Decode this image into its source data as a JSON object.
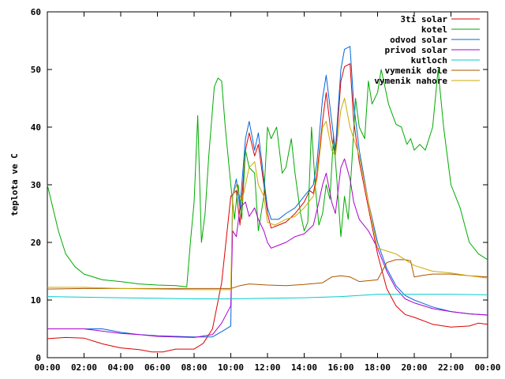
{
  "chart_data": {
    "type": "line",
    "title": "",
    "xlabel": "",
    "ylabel": "teplota ve C",
    "xlim": [
      0,
      24
    ],
    "ylim": [
      0,
      60
    ],
    "xticks": [
      {
        "v": 0,
        "label": "00:00"
      },
      {
        "v": 2,
        "label": "02:00"
      },
      {
        "v": 4,
        "label": "04:00"
      },
      {
        "v": 6,
        "label": "06:00"
      },
      {
        "v": 8,
        "label": "08:00"
      },
      {
        "v": 10,
        "label": "10:00"
      },
      {
        "v": 12,
        "label": "12:00"
      },
      {
        "v": 14,
        "label": "14:00"
      },
      {
        "v": 16,
        "label": "16:00"
      },
      {
        "v": 18,
        "label": "18:00"
      },
      {
        "v": 20,
        "label": "20:00"
      },
      {
        "v": 22,
        "label": "22:00"
      },
      {
        "v": 24,
        "label": "00:00"
      }
    ],
    "yticks": [
      0,
      10,
      20,
      30,
      40,
      50,
      60
    ],
    "grid": false,
    "legend_position": "top-right",
    "series": [
      {
        "name": "3ti solar",
        "color": "#dd0000",
        "points": [
          [
            0,
            3.3
          ],
          [
            1,
            3.5
          ],
          [
            2,
            3.4
          ],
          [
            3,
            2.4
          ],
          [
            4,
            1.7
          ],
          [
            5,
            1.4
          ],
          [
            5.7,
            1.0
          ],
          [
            6.3,
            1.0
          ],
          [
            7,
            1.5
          ],
          [
            8,
            1.5
          ],
          [
            8.5,
            2.5
          ],
          [
            9,
            5
          ],
          [
            9.5,
            13
          ],
          [
            10,
            28
          ],
          [
            10.3,
            29
          ],
          [
            10.5,
            23
          ],
          [
            10.8,
            36
          ],
          [
            11,
            39
          ],
          [
            11.3,
            35
          ],
          [
            11.5,
            37
          ],
          [
            11.8,
            30
          ],
          [
            12,
            25
          ],
          [
            12.2,
            22.5
          ],
          [
            12.6,
            23
          ],
          [
            13,
            23.5
          ],
          [
            13.5,
            25
          ],
          [
            14,
            27
          ],
          [
            14.3,
            29
          ],
          [
            14.5,
            28.5
          ],
          [
            14.7,
            32
          ],
          [
            15,
            41
          ],
          [
            15.2,
            46
          ],
          [
            15.5,
            38
          ],
          [
            15.7,
            35
          ],
          [
            16,
            48
          ],
          [
            16.2,
            50.5
          ],
          [
            16.5,
            51
          ],
          [
            16.7,
            41
          ],
          [
            17,
            34
          ],
          [
            17.5,
            26
          ],
          [
            18,
            18
          ],
          [
            18.5,
            12
          ],
          [
            19,
            9
          ],
          [
            19.5,
            7.5
          ],
          [
            20,
            7
          ],
          [
            21,
            5.8
          ],
          [
            22,
            5.3
          ],
          [
            23,
            5.5
          ],
          [
            23.5,
            6.0
          ],
          [
            24,
            5.8
          ]
        ]
      },
      {
        "name": "kotel",
        "color": "#00aa00",
        "points": [
          [
            0,
            30
          ],
          [
            0.3,
            26
          ],
          [
            0.6,
            22
          ],
          [
            1,
            18
          ],
          [
            1.5,
            15.8
          ],
          [
            2,
            14.5
          ],
          [
            3,
            13.5
          ],
          [
            4,
            13.2
          ],
          [
            5,
            12.8
          ],
          [
            6,
            12.6
          ],
          [
            7,
            12.5
          ],
          [
            7.6,
            12.3
          ],
          [
            7.8,
            20
          ],
          [
            8.0,
            27
          ],
          [
            8.2,
            42
          ],
          [
            8.4,
            20
          ],
          [
            8.6,
            25
          ],
          [
            8.8,
            35
          ],
          [
            9.1,
            47
          ],
          [
            9.3,
            48.5
          ],
          [
            9.5,
            48
          ],
          [
            9.7,
            40
          ],
          [
            10,
            30
          ],
          [
            10.2,
            24
          ],
          [
            10.4,
            30
          ],
          [
            10.6,
            24
          ],
          [
            10.8,
            36
          ],
          [
            11,
            33
          ],
          [
            11.3,
            32
          ],
          [
            11.5,
            22
          ],
          [
            11.8,
            28
          ],
          [
            12,
            40
          ],
          [
            12.2,
            38
          ],
          [
            12.5,
            40
          ],
          [
            12.8,
            32
          ],
          [
            13,
            33
          ],
          [
            13.3,
            38
          ],
          [
            13.5,
            32
          ],
          [
            13.8,
            25
          ],
          [
            14,
            22
          ],
          [
            14.2,
            23.5
          ],
          [
            14.4,
            40
          ],
          [
            14.6,
            30
          ],
          [
            14.8,
            23
          ],
          [
            15,
            25
          ],
          [
            15.2,
            30
          ],
          [
            15.4,
            27.5
          ],
          [
            15.6,
            38.5
          ],
          [
            15.8,
            30
          ],
          [
            16,
            21
          ],
          [
            16.2,
            28
          ],
          [
            16.4,
            24
          ],
          [
            16.6,
            34
          ],
          [
            16.8,
            45
          ],
          [
            17,
            40
          ],
          [
            17.3,
            38
          ],
          [
            17.5,
            48
          ],
          [
            17.7,
            44
          ],
          [
            18,
            46
          ],
          [
            18.2,
            50
          ],
          [
            18.4,
            47
          ],
          [
            18.6,
            44
          ],
          [
            19,
            40.5
          ],
          [
            19.3,
            40
          ],
          [
            19.6,
            37
          ],
          [
            19.8,
            38
          ],
          [
            20,
            36
          ],
          [
            20.3,
            37
          ],
          [
            20.6,
            36
          ],
          [
            21,
            40
          ],
          [
            21.3,
            50
          ],
          [
            21.6,
            40
          ],
          [
            22,
            30
          ],
          [
            22.5,
            26
          ],
          [
            23,
            20
          ],
          [
            23.5,
            18
          ],
          [
            24,
            17
          ]
        ]
      },
      {
        "name": "odvod solar",
        "color": "#0066dd",
        "points": [
          [
            0,
            5
          ],
          [
            1,
            5
          ],
          [
            2,
            5
          ],
          [
            3,
            5
          ],
          [
            4,
            4.4
          ],
          [
            5,
            4.0
          ],
          [
            6,
            3.8
          ],
          [
            7,
            3.7
          ],
          [
            8,
            3.6
          ],
          [
            9,
            3.6
          ],
          [
            9.5,
            4.5
          ],
          [
            10,
            5.5
          ],
          [
            10.1,
            28
          ],
          [
            10.3,
            31
          ],
          [
            10.5,
            26
          ],
          [
            10.8,
            38
          ],
          [
            11,
            41
          ],
          [
            11.3,
            36
          ],
          [
            11.5,
            39
          ],
          [
            11.8,
            31
          ],
          [
            12,
            26
          ],
          [
            12.2,
            24
          ],
          [
            12.6,
            24
          ],
          [
            13,
            25
          ],
          [
            13.5,
            26
          ],
          [
            14,
            28
          ],
          [
            14.5,
            30
          ],
          [
            14.7,
            34
          ],
          [
            15,
            45
          ],
          [
            15.2,
            49
          ],
          [
            15.5,
            41
          ],
          [
            15.7,
            36
          ],
          [
            16,
            50
          ],
          [
            16.2,
            53.5
          ],
          [
            16.5,
            54
          ],
          [
            16.7,
            44
          ],
          [
            17,
            36
          ],
          [
            17.5,
            27
          ],
          [
            18,
            20
          ],
          [
            18.5,
            15.5
          ],
          [
            19,
            12.5
          ],
          [
            19.5,
            10.8
          ],
          [
            20,
            10
          ],
          [
            21,
            8.8
          ],
          [
            22,
            8.0
          ],
          [
            23,
            7.6
          ],
          [
            24,
            7.4
          ]
        ]
      },
      {
        "name": "privod solar",
        "color": "#aa00cc",
        "points": [
          [
            0,
            5
          ],
          [
            1,
            5
          ],
          [
            2,
            5
          ],
          [
            3,
            4.6
          ],
          [
            4,
            4.2
          ],
          [
            5,
            4.0
          ],
          [
            6,
            3.7
          ],
          [
            7,
            3.6
          ],
          [
            8,
            3.5
          ],
          [
            9,
            4.0
          ],
          [
            9.5,
            6
          ],
          [
            10,
            9
          ],
          [
            10.1,
            22
          ],
          [
            10.3,
            21
          ],
          [
            10.5,
            26
          ],
          [
            10.8,
            27
          ],
          [
            11,
            24.5
          ],
          [
            11.3,
            26
          ],
          [
            11.5,
            24
          ],
          [
            11.8,
            22
          ],
          [
            12,
            20
          ],
          [
            12.2,
            19
          ],
          [
            12.6,
            19.5
          ],
          [
            13,
            20
          ],
          [
            13.5,
            21
          ],
          [
            14,
            21.5
          ],
          [
            14.5,
            23
          ],
          [
            14.8,
            27
          ],
          [
            15,
            30
          ],
          [
            15.2,
            32
          ],
          [
            15.5,
            27
          ],
          [
            15.7,
            25
          ],
          [
            16,
            33
          ],
          [
            16.2,
            34.5
          ],
          [
            16.5,
            31
          ],
          [
            16.7,
            27
          ],
          [
            17,
            24
          ],
          [
            17.5,
            22
          ],
          [
            18,
            19
          ],
          [
            18.5,
            15
          ],
          [
            19,
            12
          ],
          [
            19.5,
            10.2
          ],
          [
            20,
            9.5
          ],
          [
            21,
            8.5
          ],
          [
            22,
            8.0
          ],
          [
            23,
            7.6
          ],
          [
            24,
            7.4
          ]
        ]
      },
      {
        "name": "kutloch",
        "color": "#00cccc",
        "points": [
          [
            0,
            10.6
          ],
          [
            2,
            10.5
          ],
          [
            4,
            10.4
          ],
          [
            6,
            10.3
          ],
          [
            8,
            10.2
          ],
          [
            10,
            10.2
          ],
          [
            12,
            10.3
          ],
          [
            14,
            10.4
          ],
          [
            16,
            10.6
          ],
          [
            18,
            11.0
          ],
          [
            20,
            11.0
          ],
          [
            22,
            11.0
          ],
          [
            24,
            10.9
          ]
        ]
      },
      {
        "name": "vymenik dole",
        "color": "#aa5500",
        "points": [
          [
            0,
            11.9
          ],
          [
            2,
            12.0
          ],
          [
            4,
            12.0
          ],
          [
            6,
            12.0
          ],
          [
            8,
            12.0
          ],
          [
            10,
            12.0
          ],
          [
            10.5,
            12.5
          ],
          [
            11,
            12.8
          ],
          [
            12,
            12.6
          ],
          [
            13,
            12.5
          ],
          [
            14,
            12.7
          ],
          [
            15,
            13.0
          ],
          [
            15.5,
            14
          ],
          [
            16,
            14.2
          ],
          [
            16.5,
            14.0
          ],
          [
            17,
            13.2
          ],
          [
            18,
            13.5
          ],
          [
            18.5,
            16.5
          ],
          [
            19,
            17
          ],
          [
            19.5,
            17
          ],
          [
            19.8,
            16.8
          ],
          [
            20,
            14
          ],
          [
            20.5,
            14.3
          ],
          [
            21,
            14.5
          ],
          [
            22,
            14.5
          ],
          [
            23,
            14.2
          ],
          [
            24,
            14.0
          ]
        ]
      },
      {
        "name": "vymenik nahore",
        "color": "#ccaa00",
        "points": [
          [
            0,
            12.2
          ],
          [
            2,
            12.2
          ],
          [
            4,
            12.0
          ],
          [
            6,
            11.9
          ],
          [
            8,
            11.8
          ],
          [
            10,
            11.8
          ],
          [
            10.1,
            28
          ],
          [
            10.3,
            30
          ],
          [
            10.6,
            27
          ],
          [
            11,
            33
          ],
          [
            11.3,
            34
          ],
          [
            11.5,
            30
          ],
          [
            11.8,
            28
          ],
          [
            12,
            23.5
          ],
          [
            12.4,
            23
          ],
          [
            13,
            24
          ],
          [
            13.5,
            24.5
          ],
          [
            14,
            26
          ],
          [
            14.5,
            28
          ],
          [
            14.7,
            31
          ],
          [
            15,
            40
          ],
          [
            15.2,
            41
          ],
          [
            15.5,
            36
          ],
          [
            15.7,
            35
          ],
          [
            16,
            43
          ],
          [
            16.2,
            45
          ],
          [
            16.5,
            40
          ],
          [
            17,
            35
          ],
          [
            17.5,
            27
          ],
          [
            18,
            19
          ],
          [
            18.5,
            18.5
          ],
          [
            19,
            18
          ],
          [
            19.5,
            17
          ],
          [
            20,
            16
          ],
          [
            21,
            15
          ],
          [
            22,
            14.7
          ],
          [
            23,
            14.2
          ],
          [
            24,
            13.8
          ]
        ]
      }
    ]
  }
}
